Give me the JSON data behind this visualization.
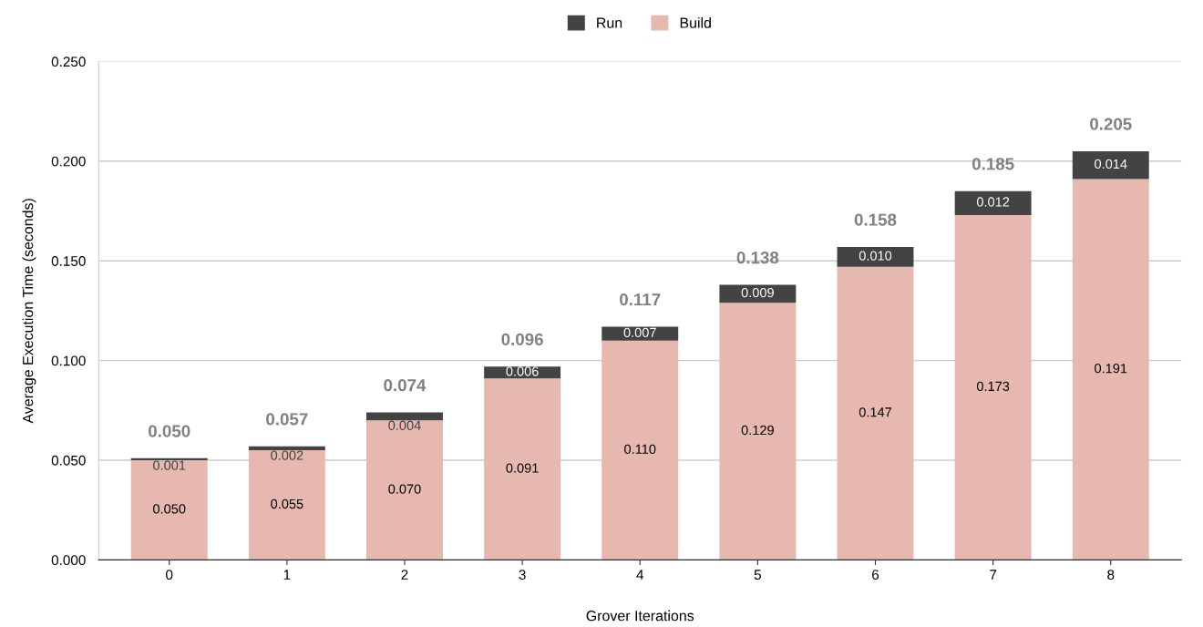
{
  "chart_data": {
    "type": "bar",
    "stacked": true,
    "xlabel": "Grover Iterations",
    "ylabel": "Average Execution Time (seconds)",
    "categories": [
      "0",
      "1",
      "2",
      "3",
      "4",
      "5",
      "6",
      "7",
      "8"
    ],
    "series": [
      {
        "name": "Build",
        "color": "#e6b8af",
        "values": [
          0.05,
          0.055,
          0.07,
          0.091,
          0.11,
          0.129,
          0.147,
          0.173,
          0.191
        ],
        "value_labels": [
          "0.050",
          "0.055",
          "0.070",
          "0.091",
          "0.110",
          "0.129",
          "0.147",
          "0.173",
          "0.191"
        ]
      },
      {
        "name": "Run",
        "color": "#434343",
        "values": [
          0.001,
          0.002,
          0.004,
          0.006,
          0.007,
          0.009,
          0.01,
          0.012,
          0.014
        ],
        "value_labels": [
          "0.001",
          "0.002",
          "0.004",
          "0.006",
          "0.007",
          "0.009",
          "0.010",
          "0.012",
          "0.014"
        ]
      }
    ],
    "totals": [
      "0.050",
      "0.057",
      "0.074",
      "0.096",
      "0.117",
      "0.138",
      "0.158",
      "0.185",
      "0.205"
    ],
    "data_labels": true,
    "ylim": [
      0,
      0.25
    ],
    "yticks": [
      {
        "value": 0,
        "label": "0.000"
      },
      {
        "value": 0.05,
        "label": "0.050"
      },
      {
        "value": 0.1,
        "label": "0.100"
      },
      {
        "value": 0.15,
        "label": "0.150"
      },
      {
        "value": 0.2,
        "label": "0.200"
      },
      {
        "value": 0.25,
        "label": "0.250"
      }
    ],
    "grid": "y",
    "legend": "top"
  }
}
